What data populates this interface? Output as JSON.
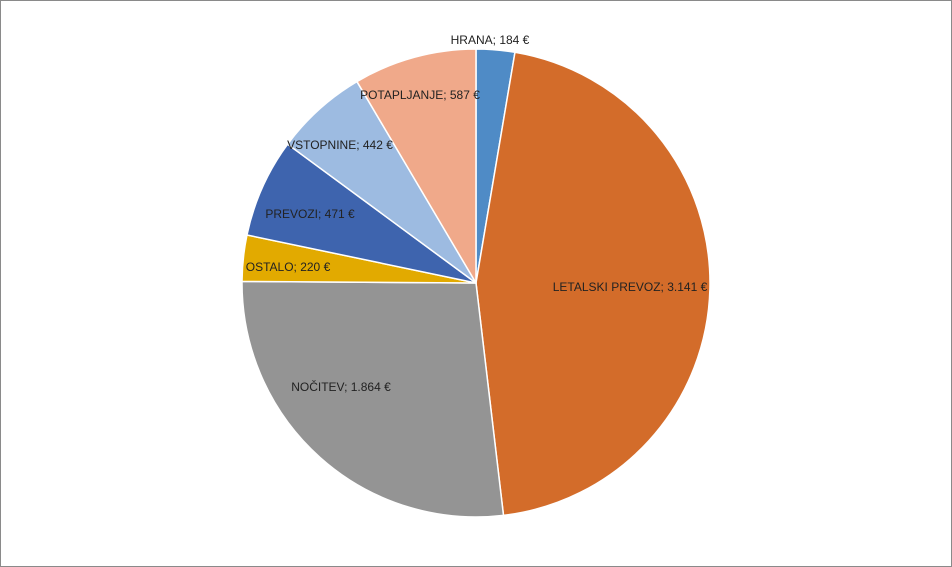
{
  "chart_data": {
    "type": "pie",
    "values": [
      184,
      3141,
      1864,
      220,
      471,
      442,
      587
    ],
    "value_labels": [
      "HRANA; 184 €",
      "LETALSKI PREVOZ; 3.141 €",
      "NOČITEV; 1.864 €",
      "OSTALO; 220 €",
      "PREVOZI; 471 €",
      "VSTOPNINE; 442 €",
      "POTAPLJANJE; 587 €"
    ],
    "colors": [
      "#4f8bc6",
      "#d36c2a",
      "#949494",
      "#e2aa00",
      "#3e64ae",
      "#9dbbe1",
      "#f0a98a"
    ]
  }
}
